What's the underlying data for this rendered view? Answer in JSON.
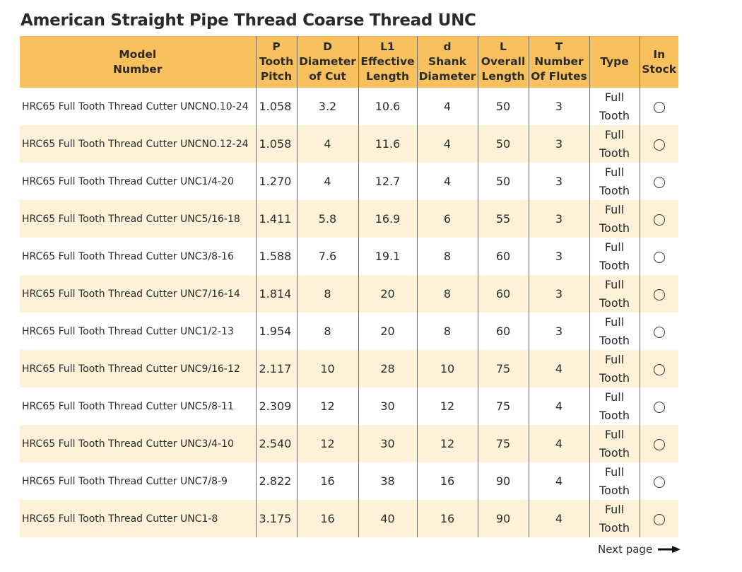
{
  "title": "American Straight Pipe Thread Coarse Thread UNC",
  "colors": {
    "header_bg": "#f8c15d",
    "stripe_bg": "#fdf1d8",
    "border": "#6e6e6e"
  },
  "table": {
    "columns": [
      {
        "lines": [
          "Model",
          "Number"
        ]
      },
      {
        "lines": [
          "P",
          "Tooth",
          "Pitch"
        ]
      },
      {
        "lines": [
          "D",
          "Diameter",
          "of Cut"
        ]
      },
      {
        "lines": [
          "L1",
          "Effective",
          "Length"
        ]
      },
      {
        "lines": [
          "d",
          "Shank",
          "Diameter"
        ]
      },
      {
        "lines": [
          "L",
          "Overall",
          "Length"
        ]
      },
      {
        "lines": [
          "T",
          "Number",
          "Of Flutes"
        ]
      },
      {
        "lines": [
          "Type"
        ]
      },
      {
        "lines": [
          "In",
          "Stock"
        ]
      }
    ],
    "rows": [
      {
        "model": "HRC65 Full Tooth Thread Cutter UNCNO.10-24",
        "p": "1.058",
        "d_cut": "3.2",
        "l1": "10.6",
        "shank": "4",
        "l": "50",
        "t": "3",
        "type": [
          "Full",
          "Tooth"
        ],
        "stock": "circle"
      },
      {
        "model": "HRC65 Full Tooth Thread Cutter UNCNO.12-24",
        "p": "1.058",
        "d_cut": "4",
        "l1": "11.6",
        "shank": "4",
        "l": "50",
        "t": "3",
        "type": [
          "Full",
          "Tooth"
        ],
        "stock": "circle"
      },
      {
        "model": "HRC65 Full Tooth Thread Cutter UNC1/4-20",
        "p": "1.270",
        "d_cut": "4",
        "l1": "12.7",
        "shank": "4",
        "l": "50",
        "t": "3",
        "type": [
          "Full",
          "Tooth"
        ],
        "stock": "circle"
      },
      {
        "model": "HRC65 Full Tooth Thread Cutter UNC5/16-18",
        "p": "1.411",
        "d_cut": "5.8",
        "l1": "16.9",
        "shank": "6",
        "l": "55",
        "t": "3",
        "type": [
          "Full",
          "Tooth"
        ],
        "stock": "circle"
      },
      {
        "model": "HRC65 Full Tooth Thread Cutter UNC3/8-16",
        "p": "1.588",
        "d_cut": "7.6",
        "l1": "19.1",
        "shank": "8",
        "l": "60",
        "t": "3",
        "type": [
          "Full",
          "Tooth"
        ],
        "stock": "circle"
      },
      {
        "model": "HRC65 Full Tooth Thread Cutter UNC7/16-14",
        "p": "1.814",
        "d_cut": "8",
        "l1": "20",
        "shank": "8",
        "l": "60",
        "t": "3",
        "type": [
          "Full",
          "Tooth"
        ],
        "stock": "circle"
      },
      {
        "model": "HRC65 Full Tooth Thread Cutter UNC1/2-13",
        "p": "1.954",
        "d_cut": "8",
        "l1": "20",
        "shank": "8",
        "l": "60",
        "t": "3",
        "type": [
          "Full",
          "Tooth"
        ],
        "stock": "circle"
      },
      {
        "model": "HRC65 Full Tooth Thread Cutter UNC9/16-12",
        "p": "2.117",
        "d_cut": "10",
        "l1": "28",
        "shank": "10",
        "l": "75",
        "t": "4",
        "type": [
          "Full",
          "Tooth"
        ],
        "stock": "circle"
      },
      {
        "model": "HRC65 Full Tooth Thread Cutter UNC5/8-11",
        "p": "2.309",
        "d_cut": "12",
        "l1": "30",
        "shank": "12",
        "l": "75",
        "t": "4",
        "type": [
          "Full",
          "Tooth"
        ],
        "stock": "circle"
      },
      {
        "model": "HRC65 Full Tooth Thread Cutter UNC3/4-10",
        "p": "2.540",
        "d_cut": "12",
        "l1": "30",
        "shank": "12",
        "l": "75",
        "t": "4",
        "type": [
          "Full",
          "Tooth"
        ],
        "stock": "circle"
      },
      {
        "model": "HRC65 Full Tooth Thread Cutter UNC7/8-9",
        "p": "2.822",
        "d_cut": "16",
        "l1": "38",
        "shank": "16",
        "l": "90",
        "t": "4",
        "type": [
          "Full",
          "Tooth"
        ],
        "stock": "circle"
      },
      {
        "model": "HRC65 Full Tooth Thread Cutter UNC1-8",
        "p": "3.175",
        "d_cut": "16",
        "l1": "40",
        "shank": "16",
        "l": "90",
        "t": "4",
        "type": [
          "Full",
          "Tooth"
        ],
        "stock": "circle"
      }
    ]
  },
  "footer": {
    "next_label": "Next page",
    "next_icon": "right-arrow-icon"
  }
}
